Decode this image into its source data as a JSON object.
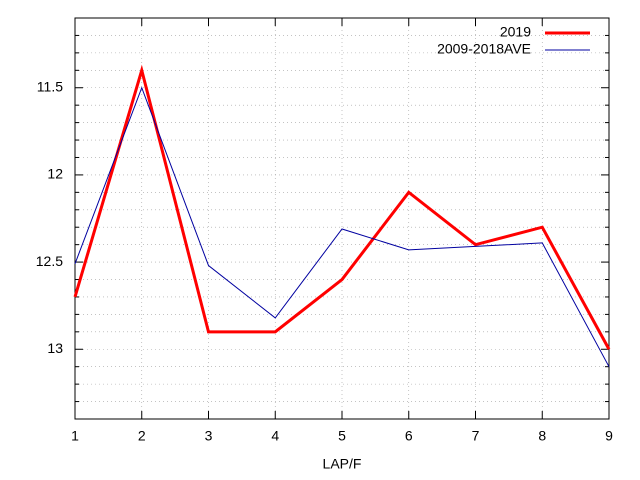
{
  "chart_data": {
    "type": "line",
    "x_label": "LAP/F",
    "x": [
      1,
      2,
      3,
      4,
      5,
      6,
      7,
      8,
      9
    ],
    "series": [
      {
        "name": "2019",
        "color": "#ff0000",
        "values": [
          12.7,
          11.4,
          12.9,
          12.9,
          12.6,
          12.1,
          12.4,
          12.3,
          13.0
        ]
      },
      {
        "name": "2009-2018AVE",
        "color": "#0000a0",
        "values": [
          12.51,
          11.5,
          12.52,
          12.82,
          12.31,
          12.43,
          12.41,
          12.39,
          13.1
        ]
      }
    ],
    "xlim": [
      1,
      9
    ],
    "xticks": [
      1,
      2,
      3,
      4,
      5,
      6,
      7,
      8,
      9
    ],
    "ylim": [
      11.1,
      13.4
    ],
    "yticks": [
      11.5,
      12,
      12.5,
      13
    ],
    "y_reversed": true,
    "y_minor_per_major": 5,
    "grid": true,
    "legend": "top-right"
  }
}
